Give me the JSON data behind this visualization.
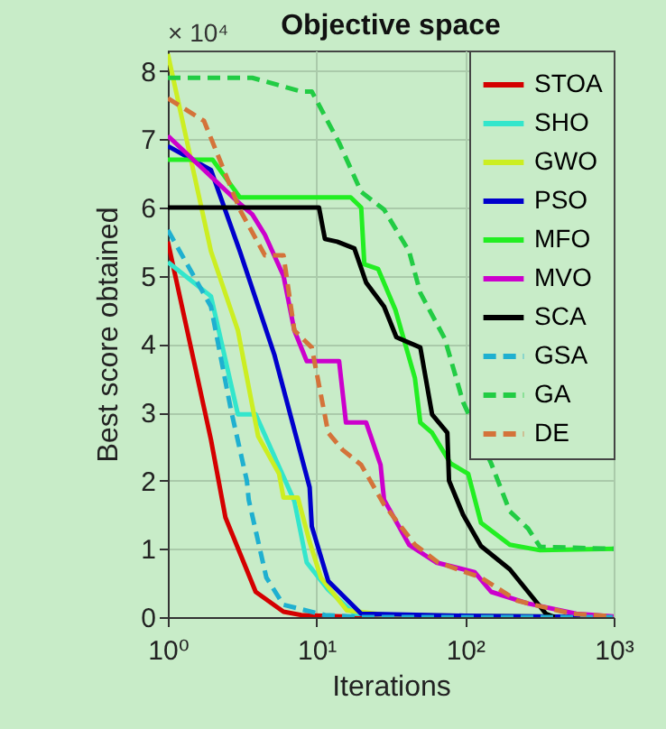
{
  "chart_data": {
    "type": "line",
    "title": "Objective space",
    "xlabel": "Iterations",
    "ylabel": "Best score obtained",
    "annotations": [
      "× 10⁴"
    ],
    "log": "x",
    "grid": true,
    "legend": "top right",
    "xlim": [
      1,
      1000
    ],
    "xticks": [
      {
        "value": 1,
        "label": "10⁰"
      },
      {
        "value": 10,
        "label": "10¹"
      },
      {
        "value": 100,
        "label": "10²"
      },
      {
        "value": 1000,
        "label": "10³"
      }
    ],
    "ylim": [
      0,
      8.3
    ],
    "yticks": [
      0,
      1,
      2,
      3,
      4,
      5,
      6,
      7,
      8
    ],
    "series": [
      {
        "name": "STOA",
        "color": "#d40000",
        "line_style": "solid",
        "x": [
          1,
          1.95,
          2.44,
          3.9,
          6,
          7.9,
          20,
          1000
        ],
        "values": [
          5.5,
          2.6,
          1.46,
          0.37,
          0.08,
          0.03,
          0,
          0
        ]
      },
      {
        "name": "SHO",
        "color": "#33e6cc",
        "line_style": "solid",
        "x": [
          1,
          1.95,
          2.96,
          3.9,
          7.1,
          8.6,
          12,
          18,
          50,
          1000
        ],
        "values": [
          5.2,
          4.7,
          2.97,
          2.97,
          1.7,
          0.8,
          0.4,
          0.05,
          0.02,
          0
        ]
      },
      {
        "name": "GWO",
        "color": "#ccee22",
        "line_style": "solid",
        "x": [
          1,
          1.95,
          2.96,
          4.05,
          5.6,
          6,
          7.5,
          9,
          10.7,
          16,
          30,
          1000
        ],
        "values": [
          8.25,
          5.36,
          4.2,
          2.65,
          2.1,
          1.75,
          1.75,
          1.1,
          0.58,
          0.1,
          0.03,
          0
        ]
      },
      {
        "name": "PSO",
        "color": "#0000cc",
        "line_style": "solid",
        "x": [
          1,
          1.95,
          3.05,
          5.2,
          9,
          9.3,
          12,
          20,
          100,
          1000
        ],
        "values": [
          6.9,
          6.55,
          5.36,
          3.85,
          1.9,
          1.33,
          0.53,
          0.05,
          0.02,
          0
        ]
      },
      {
        "name": "MFO",
        "color": "#22ee22",
        "line_style": "solid",
        "x": [
          1,
          2,
          3.05,
          17,
          20,
          21,
          26,
          34,
          46,
          50,
          60,
          80,
          105,
          128,
          200,
          320,
          1000
        ],
        "values": [
          6.7,
          6.7,
          6.15,
          6.15,
          6.0,
          5.17,
          5.1,
          4.5,
          3.5,
          2.85,
          2.7,
          2.25,
          2.1,
          1.38,
          1.06,
          0.98,
          1.0
        ]
      },
      {
        "name": "MVO",
        "color": "#cc00cc",
        "line_style": "solid",
        "x": [
          1,
          3,
          3.7,
          4.5,
          6,
          7.1,
          8.6,
          14.2,
          15.8,
          21.6,
          27,
          28.5,
          42,
          64,
          116,
          150,
          265,
          560,
          1000
        ],
        "values": [
          7.05,
          6.07,
          5.9,
          5.6,
          5.0,
          4.2,
          3.75,
          3.75,
          2.85,
          2.85,
          2.23,
          1.72,
          1.06,
          0.8,
          0.66,
          0.37,
          0.2,
          0.05,
          0.01
        ]
      },
      {
        "name": "SCA",
        "color": "#000000",
        "line_style": "solid",
        "x": [
          1,
          10.4,
          11.4,
          13.8,
          18,
          21.6,
          28.5,
          34.5,
          50,
          60,
          76,
          78,
          97,
          128,
          200,
          350,
          400
        ],
        "values": [
          6.0,
          6.0,
          5.54,
          5.5,
          5.4,
          4.9,
          4.55,
          4.1,
          3.95,
          2.97,
          2.7,
          2.0,
          1.5,
          1.04,
          0.7,
          0.05,
          0
        ]
      },
      {
        "name": "GSA",
        "color": "#1fb0d0",
        "line_style": "dashed",
        "x": [
          1,
          1.95,
          2.65,
          3.4,
          3.5,
          4.6,
          6,
          11.4,
          20,
          1000
        ],
        "values": [
          5.67,
          4.55,
          3.05,
          2.0,
          1.72,
          0.58,
          0.18,
          0.03,
          0,
          0
        ]
      },
      {
        "name": "GA",
        "color": "#22cc44",
        "line_style": "dashed",
        "x": [
          1,
          3.7,
          7.9,
          9.3,
          14.2,
          20,
          28.5,
          42,
          50,
          73,
          97,
          150,
          200,
          265,
          320,
          1000
        ],
        "values": [
          7.9,
          7.9,
          7.7,
          7.7,
          6.95,
          6.23,
          5.97,
          5.36,
          4.75,
          4.08,
          3.15,
          2.25,
          1.55,
          1.3,
          1.03,
          1.0
        ]
      },
      {
        "name": "DE",
        "color": "#d4733a",
        "line_style": "dashed",
        "x": [
          1,
          1.75,
          3.05,
          4.5,
          6,
          7.1,
          9.3,
          12,
          15,
          20,
          28.5,
          46,
          66,
          128,
          225,
          520,
          1000
        ],
        "values": [
          7.6,
          7.27,
          5.97,
          5.3,
          5.3,
          4.2,
          3.95,
          2.7,
          2.45,
          2.23,
          1.65,
          1.06,
          0.8,
          0.58,
          0.24,
          0.05,
          0.01
        ]
      }
    ]
  }
}
